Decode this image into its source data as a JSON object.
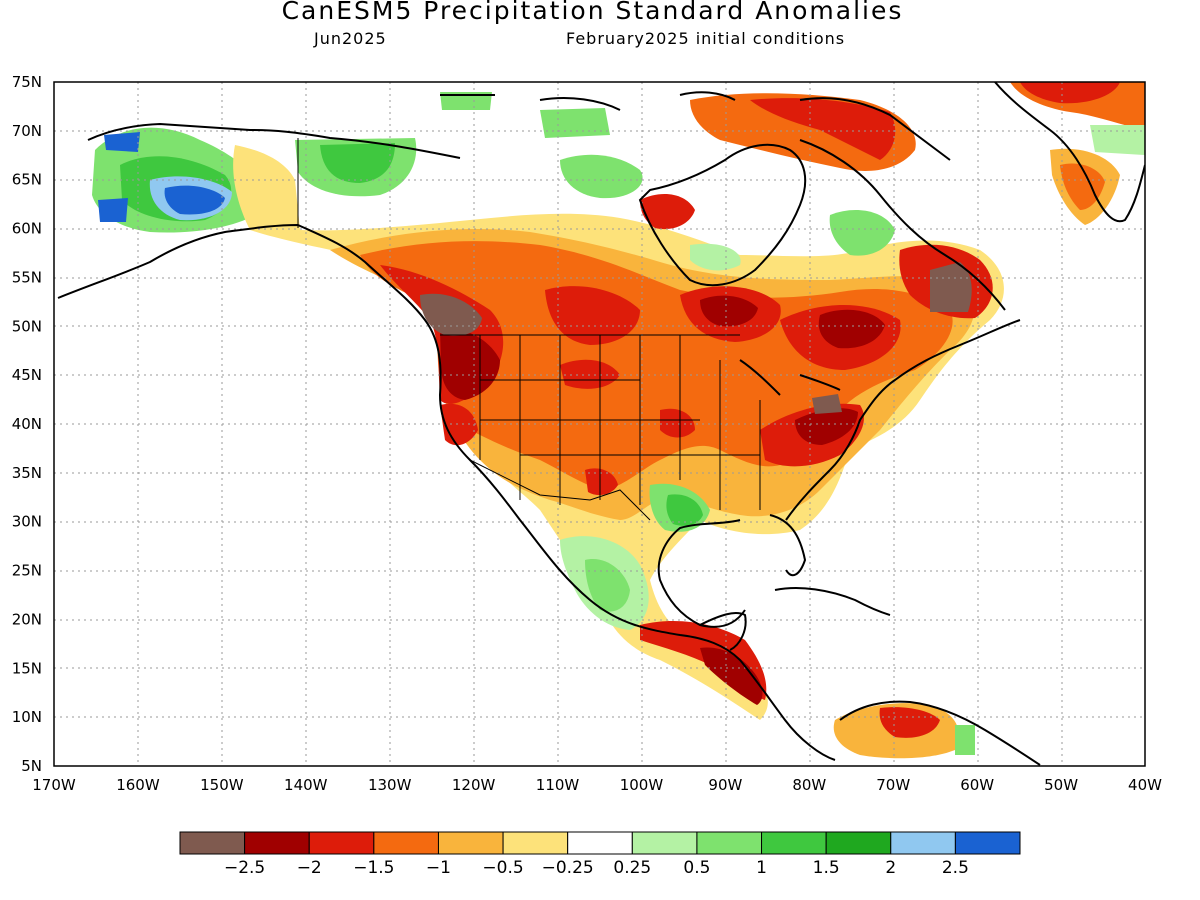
{
  "title": "CanESM5 Precipitation Standard Anomalies",
  "subtitle_left": "Jun2025",
  "subtitle_right": "February2025 initial conditions",
  "map": {
    "lon_range": [
      -170,
      -40
    ],
    "lat_range": [
      5,
      75
    ],
    "lat_ticks": [
      "75N",
      "70N",
      "65N",
      "60N",
      "55N",
      "50N",
      "45N",
      "40N",
      "35N",
      "30N",
      "25N",
      "20N",
      "15N",
      "10N",
      "5N"
    ],
    "lon_ticks": [
      "170W",
      "160W",
      "150W",
      "140W",
      "130W",
      "120W",
      "110W",
      "100W",
      "90W",
      "80W",
      "70W",
      "60W",
      "50W",
      "40W"
    ],
    "grid": "dotted"
  },
  "colorbar": {
    "colors": [
      "#7f5a4f",
      "#a00000",
      "#dd1c0a",
      "#f46a10",
      "#f9b43c",
      "#fde27a",
      "#ffffff",
      "#b4f2a4",
      "#7ee26e",
      "#3fc83f",
      "#1fa81f",
      "#90c8f0",
      "#1a62d2"
    ],
    "labels": [
      "−2.5",
      "−2",
      "−1.5",
      "−1",
      "−0.5",
      "−0.25",
      "0.25",
      "0.5",
      "1",
      "1.5",
      "2",
      "2.5"
    ]
  }
}
